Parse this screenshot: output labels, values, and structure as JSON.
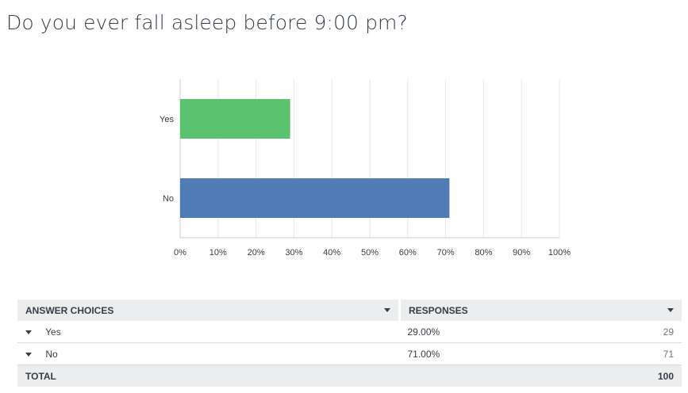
{
  "question": {
    "title": "Do you ever fall asleep before 9:00 pm?"
  },
  "chart_data": {
    "type": "bar",
    "orientation": "horizontal",
    "categories": [
      "Yes",
      "No"
    ],
    "values": [
      29,
      71
    ],
    "colors": [
      "#5bc26f",
      "#507cb6"
    ],
    "xlim": [
      0,
      100
    ],
    "xticks": [
      "0%",
      "10%",
      "20%",
      "30%",
      "40%",
      "50%",
      "60%",
      "70%",
      "80%",
      "90%",
      "100%"
    ],
    "grid": true,
    "title": "",
    "xlabel": "",
    "ylabel": ""
  },
  "table": {
    "headers": {
      "choices": "ANSWER CHOICES",
      "responses": "RESPONSES"
    },
    "rows": [
      {
        "label": "Yes",
        "percent": "29.00%",
        "count": "29"
      },
      {
        "label": "No",
        "percent": "71.00%",
        "count": "71"
      }
    ],
    "total": {
      "label": "TOTAL",
      "count": "100"
    }
  }
}
